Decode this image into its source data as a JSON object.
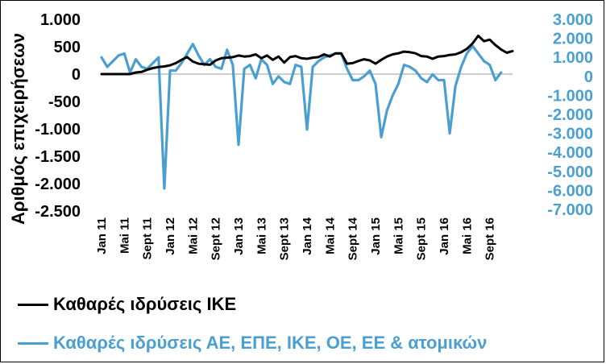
{
  "chart_data": {
    "type": "line",
    "title": "",
    "ylabel": "Αριθμός επιχειρήσεων",
    "xlabel": "",
    "x_tick_labels": [
      "Jan 11",
      "Mai 11",
      "Sept 11",
      "Jan 12",
      "Mai 12",
      "Sept 12",
      "Jan 13",
      "Mai 13",
      "Sept 13",
      "Jan 14",
      "Mai 14",
      "Sept 14",
      "Jan 15",
      "Mai 15",
      "Sept 15",
      "Jan 16",
      "Mai 16",
      "Sept 16"
    ],
    "x_tick_every_months": 4,
    "left_axis": {
      "ylim": [
        -2500,
        1000
      ],
      "ticks": [
        "1.000",
        "500",
        "0",
        "-500",
        "-1.000",
        "-1.500",
        "-2.000",
        "-2.500"
      ],
      "tick_values": [
        1000,
        500,
        0,
        -500,
        -1000,
        -1500,
        -2000,
        -2500
      ]
    },
    "right_axis": {
      "ylim": [
        -7000,
        3000
      ],
      "ticks": [
        "3.000",
        "2.000",
        "1.000",
        "0",
        "-1.000",
        "-2.000",
        "-3.000",
        "-4.000",
        "-5.000",
        "-6.000",
        "-7.000"
      ],
      "tick_values": [
        3000,
        2000,
        1000,
        0,
        -1000,
        -2000,
        -3000,
        -4000,
        -5000,
        -6000,
        -7000
      ]
    },
    "series": [
      {
        "name": "Καθαρές ιδρύσεις ΙΚΕ",
        "axis": "left",
        "color": "#000000",
        "values": [
          0,
          0,
          0,
          0,
          0,
          0,
          30,
          40,
          80,
          110,
          130,
          140,
          160,
          200,
          260,
          310,
          230,
          190,
          180,
          170,
          250,
          290,
          300,
          310,
          340,
          320,
          330,
          360,
          290,
          340,
          260,
          320,
          210,
          310,
          330,
          290,
          280,
          300,
          310,
          360,
          320,
          380,
          380,
          190,
          200,
          240,
          270,
          250,
          190,
          260,
          320,
          360,
          380,
          410,
          400,
          380,
          330,
          320,
          280,
          320,
          330,
          350,
          360,
          400,
          460,
          560,
          700,
          600,
          630,
          530,
          450,
          390,
          420
        ]
      },
      {
        "name": "Καθαρές ιδρύσεις ΑΕ, ΕΠΕ, ΙΚΕ, ΟΕ, ΕΕ & ατομικών",
        "axis": "right",
        "color": "#4a9fd1",
        "values": [
          1000,
          500,
          800,
          1100,
          1200,
          200,
          900,
          500,
          400,
          700,
          1000,
          -5900,
          300,
          300,
          700,
          1200,
          1700,
          1100,
          600,
          900,
          500,
          400,
          1400,
          600,
          -3600,
          400,
          600,
          -100,
          900,
          600,
          -400,
          0,
          -300,
          -400,
          600,
          500,
          -2800,
          500,
          800,
          1000,
          1100,
          1200,
          1200,
          400,
          -200,
          -200,
          0,
          300,
          -400,
          -3200,
          -1800,
          -1000,
          -400,
          600,
          500,
          300,
          -100,
          -300,
          100,
          -200,
          -200,
          -3000,
          -500,
          500,
          1200,
          1600,
          1200,
          800,
          600,
          -200,
          200
        ]
      }
    ],
    "legend": [
      {
        "label": "Καθαρές ιδρύσεις ΙΚΕ",
        "color": "#000000"
      },
      {
        "label": "Καθαρές ιδρύσεις ΑΕ, ΕΠΕ, ΙΚΕ, ΟΕ, ΕΕ & ατομικών",
        "color": "#4a9fd1"
      }
    ]
  }
}
